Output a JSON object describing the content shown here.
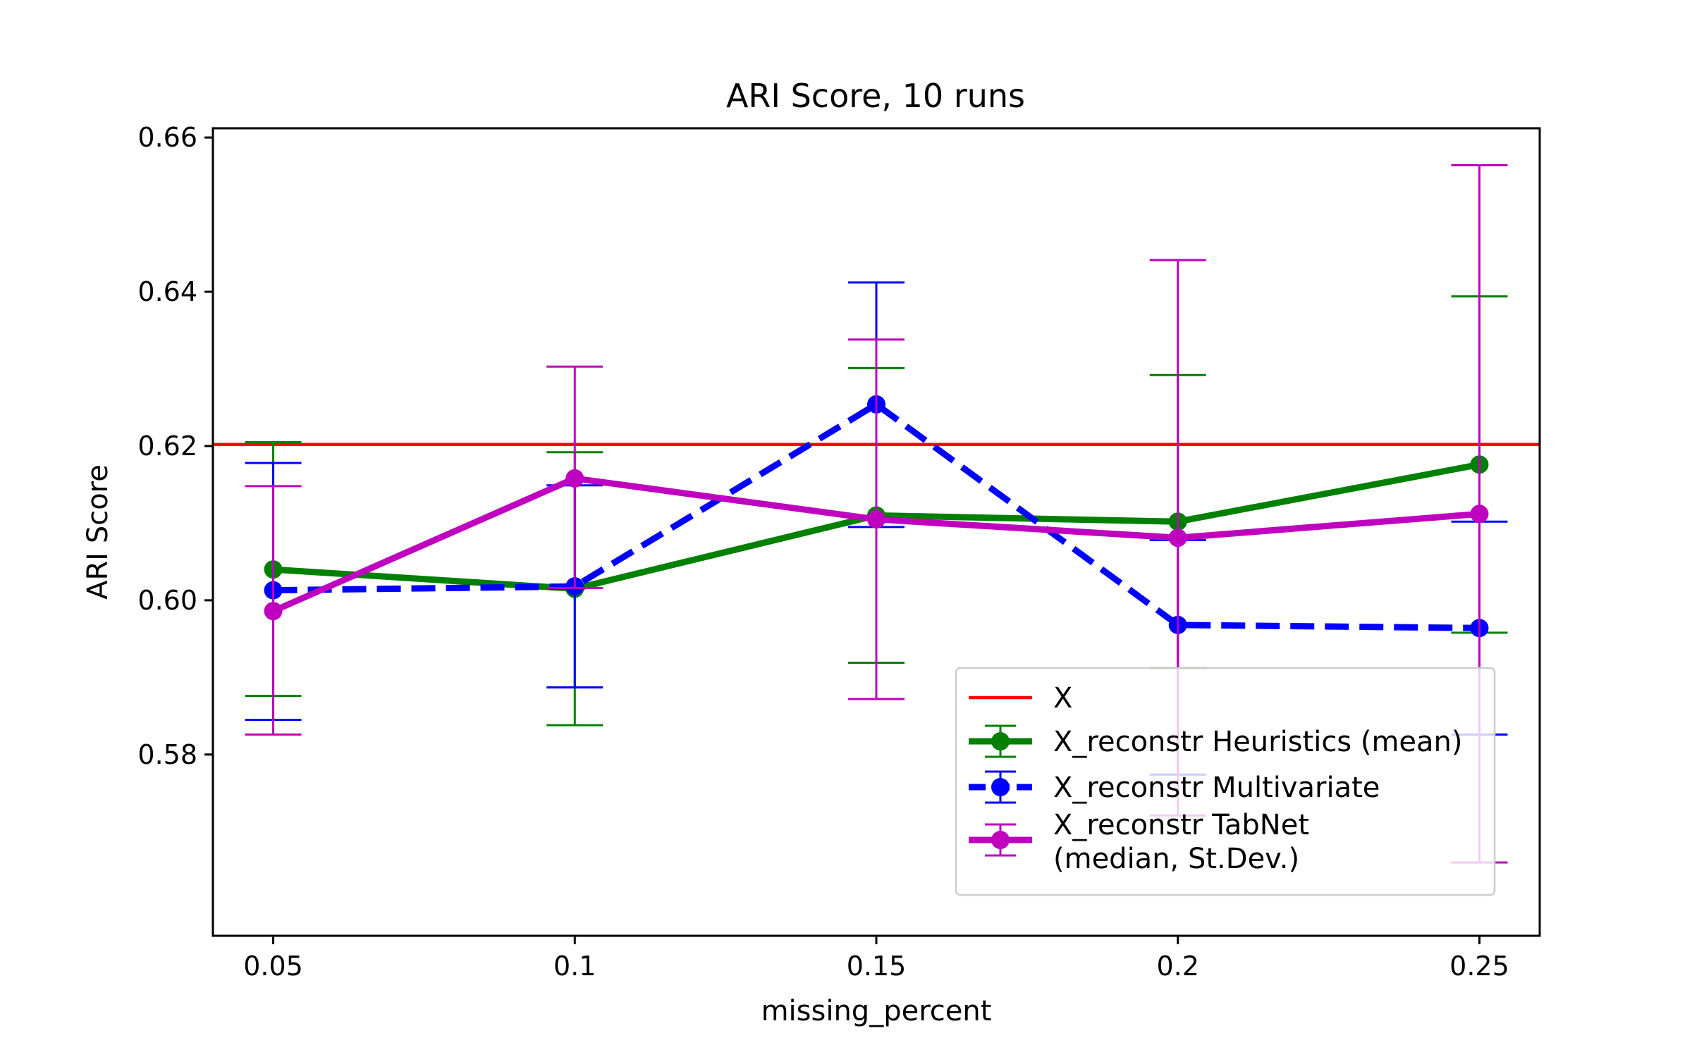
{
  "chart_data": {
    "type": "line",
    "title": "ARI Score, 10 runs",
    "xlabel": "missing_percent",
    "ylabel": "ARI Score",
    "categories": [
      "0.05",
      "0.1",
      "0.15",
      "0.2",
      "0.25"
    ],
    "x": [
      0.05,
      0.1,
      0.15,
      0.2,
      0.25
    ],
    "xlim": [
      0.04,
      0.26
    ],
    "ylim": [
      0.5565,
      0.6612
    ],
    "yticks": [
      0.58,
      0.6,
      0.62,
      0.64,
      0.66
    ],
    "ytick_labels": [
      "0.58",
      "0.60",
      "0.62",
      "0.64",
      "0.66"
    ],
    "grid": false,
    "legend_position": "lower-right",
    "reference_line": {
      "name": "X",
      "value": 0.6202,
      "color": "#ff0000"
    },
    "series": [
      {
        "name": "X_reconstr Heuristics (mean)",
        "color": "#008000",
        "linestyle": "solid",
        "values": [
          0.604,
          0.6015,
          0.611,
          0.6102,
          0.6176
        ],
        "err_low": [
          0.5876,
          0.5838,
          0.5919,
          0.5912,
          0.5958
        ],
        "err_high": [
          0.6205,
          0.6192,
          0.6301,
          0.6292,
          0.6394
        ]
      },
      {
        "name": "X_reconstr Multivariate",
        "color": "#0000ff",
        "linestyle": "dashed",
        "values": [
          0.6013,
          0.6018,
          0.6254,
          0.5968,
          0.5964
        ],
        "err_low": [
          0.5845,
          0.5887,
          0.6095,
          0.5774,
          0.5826
        ],
        "err_high": [
          0.6178,
          0.6149,
          0.6412,
          0.6078,
          0.6102
        ]
      },
      {
        "name": "X_reconstr TabNet (median, St.Dev.)",
        "label_lines": [
          "X_reconstr TabNet",
          "(median, St.Dev.)"
        ],
        "color": "#bf00bf",
        "linestyle": "solid",
        "values": [
          0.5986,
          0.6158,
          0.6105,
          0.6081,
          0.6112
        ],
        "err_low": [
          0.5826,
          0.6016,
          0.5872,
          0.5721,
          0.566
        ],
        "err_high": [
          0.6148,
          0.6303,
          0.6338,
          0.6441,
          0.6564
        ]
      }
    ]
  }
}
